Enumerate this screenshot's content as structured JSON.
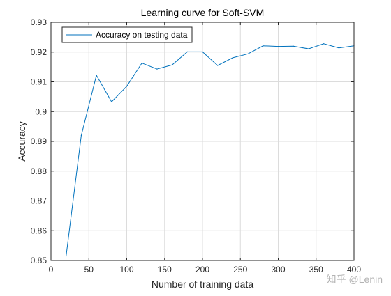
{
  "chart_data": {
    "type": "line",
    "title": "Learning curve for Soft-SVM",
    "xlabel": "Number of training data",
    "ylabel": "Accuracy",
    "xlim": [
      0,
      400
    ],
    "ylim": [
      0.85,
      0.93
    ],
    "xticks": [
      0,
      50,
      100,
      150,
      200,
      250,
      300,
      350,
      400
    ],
    "yticks": [
      0.85,
      0.86,
      0.87,
      0.88,
      0.89,
      0.9,
      0.91,
      0.92,
      0.93
    ],
    "xtick_labels": [
      "0",
      "50",
      "100",
      "150",
      "200",
      "250",
      "300",
      "350",
      "400"
    ],
    "ytick_labels": [
      "0.85",
      "0.86",
      "0.87",
      "0.88",
      "0.89",
      "0.9",
      "0.91",
      "0.92",
      "0.93"
    ],
    "grid": true,
    "legend_position": "top-left",
    "series": [
      {
        "name": "Accuracy on testing data",
        "color": "#0072bd",
        "x": [
          20,
          40,
          60,
          80,
          100,
          120,
          140,
          160,
          180,
          200,
          220,
          240,
          260,
          280,
          300,
          320,
          340,
          360,
          380,
          400
        ],
        "y": [
          0.8515,
          0.892,
          0.9122,
          0.9033,
          0.9085,
          0.9163,
          0.9143,
          0.9157,
          0.9201,
          0.9201,
          0.9155,
          0.9181,
          0.9194,
          0.9221,
          0.9219,
          0.922,
          0.9211,
          0.9228,
          0.9214,
          0.9221
        ]
      }
    ]
  },
  "watermark": "知乎 @Lenin"
}
